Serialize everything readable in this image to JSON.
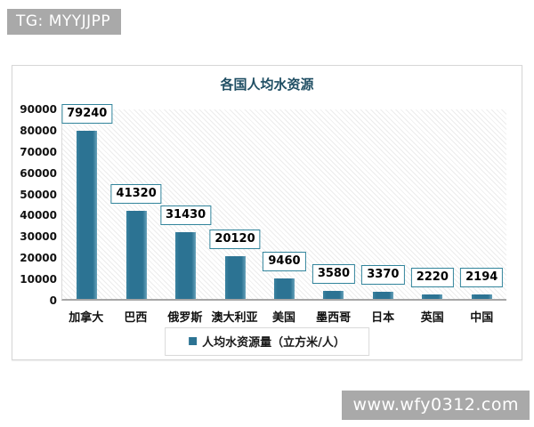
{
  "watermarks": {
    "tg_badge": "TG: MYYJJPP",
    "site_badge": "www.wfy0312.com"
  },
  "chart_data": {
    "type": "bar",
    "title": "各国人均水资源",
    "categories": [
      "加拿大",
      "巴西",
      "俄罗斯",
      "澳大利亚",
      "美国",
      "墨西哥",
      "日本",
      "英国",
      "中国"
    ],
    "values": [
      79240,
      41320,
      31430,
      20120,
      9460,
      3580,
      3370,
      2220,
      2194
    ],
    "legend": "人均水资源量（立方米/人）",
    "legend_position": "bottom",
    "xlabel": "",
    "ylabel": "",
    "ylim": [
      0,
      90000
    ],
    "yticks": [
      0,
      10000,
      20000,
      30000,
      40000,
      50000,
      60000,
      70000,
      80000,
      90000
    ],
    "grid": false,
    "plot_background": "diagonal-hatch",
    "colors": {
      "bar": "#2c7393",
      "title": "#1f4e63",
      "value_label_border": "#31849b",
      "badge_background": "#a9a9a9"
    }
  }
}
